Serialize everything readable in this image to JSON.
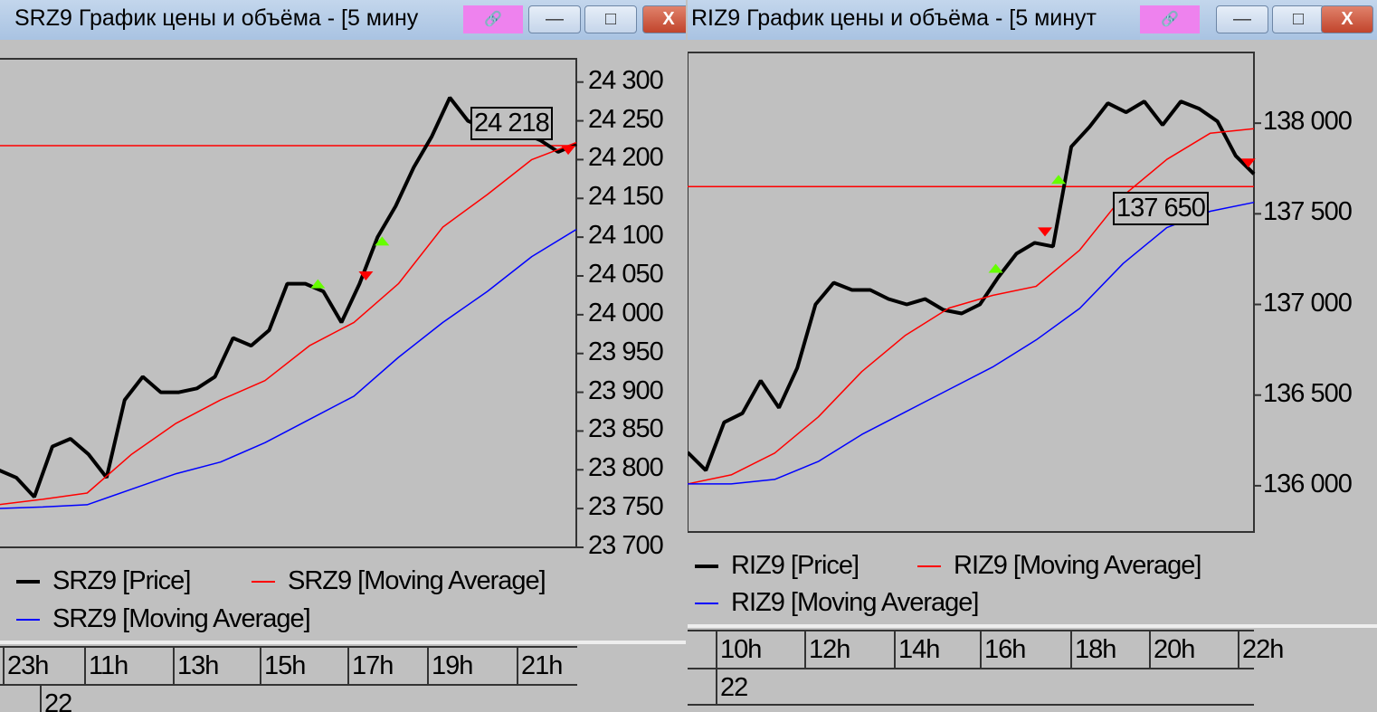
{
  "windows": [
    {
      "title": "SRZ9 График цены и объёма - [5 мину",
      "link_icon": "chain-link-icon",
      "link_color": "#ee82ee",
      "minimize": "—",
      "maximize": "□",
      "close": "X",
      "legend": [
        "SRZ9 [Price]",
        "SRZ9 [Moving Average]",
        "SRZ9 [Moving Average]"
      ],
      "time_ticks": [
        "23h",
        "11h",
        "13h",
        "15h",
        "17h",
        "19h",
        "21h"
      ],
      "date_label": "22",
      "last_price": "24 218"
    },
    {
      "title": "RIZ9 График цены и объёма - [5 минут",
      "link_icon": "chain-link-icon",
      "link_color": "#ee82ee",
      "minimize": "—",
      "maximize": "□",
      "close": "X",
      "legend": [
        "RIZ9 [Price]",
        "RIZ9 [Moving Average]",
        "RIZ9 [Moving Average]"
      ],
      "time_ticks": [
        "10h",
        "12h",
        "14h",
        "16h",
        "18h",
        "20h",
        "22h"
      ],
      "date_label": "22",
      "last_price": "137 650"
    }
  ],
  "chart_data": [
    {
      "type": "line",
      "title": "SRZ9",
      "ylim": [
        23700,
        24330
      ],
      "y_ticks": [
        "23 700",
        "23 750",
        "23 800",
        "23 850",
        "23 900",
        "23 950",
        "24 000",
        "24 050",
        "24 100",
        "24 150",
        "24 200",
        "24 250",
        "24 300"
      ],
      "y_tick_values": [
        23700,
        23750,
        23800,
        23850,
        23900,
        23950,
        24000,
        24050,
        24100,
        24150,
        24200,
        24250,
        24300
      ],
      "x_ticks": [
        "23h",
        "11h",
        "13h",
        "15h",
        "17h",
        "19h",
        "21h"
      ],
      "grid": false,
      "legend": "bottom",
      "series": [
        {
          "name": "SRZ9 [Price]",
          "color": "#000000",
          "values": [
            23800,
            23790,
            23765,
            23830,
            23840,
            23820,
            23790,
            23890,
            23920,
            23900,
            23900,
            23905,
            23920,
            23970,
            23960,
            23980,
            24040,
            24040,
            24030,
            23990,
            24040,
            24100,
            24140,
            24190,
            24230,
            24280,
            24250,
            24240,
            24240,
            24235,
            24225,
            24210,
            24220
          ]
        },
        {
          "name": "SRZ9 [Moving Average]",
          "color": "#ff0000",
          "values": [
            23755,
            23762,
            23770,
            23820,
            23860,
            23890,
            23915,
            23960,
            23990,
            24040,
            24113,
            24155,
            24200,
            24222
          ]
        },
        {
          "name": "SRZ9 [Moving Average]",
          "color": "#0000ff",
          "values": [
            23750,
            23752,
            23755,
            23775,
            23795,
            23810,
            23835,
            23865,
            23895,
            23945,
            23990,
            24030,
            24075,
            24110
          ]
        }
      ],
      "last_price": 24218,
      "signals": [
        {
          "type": "buy",
          "pos": 0.553,
          "value": 24040
        },
        {
          "type": "sell",
          "pos": 0.636,
          "value": 24050
        },
        {
          "type": "buy",
          "pos": 0.664,
          "value": 24095
        },
        {
          "type": "sell",
          "pos": 0.986,
          "value": 24212
        }
      ]
    },
    {
      "type": "line",
      "title": "RIZ9",
      "ylim": [
        135745,
        138390
      ],
      "y_ticks": [
        "136 000",
        "136 500",
        "137 000",
        "137 500",
        "138 000"
      ],
      "y_tick_values": [
        136000,
        136500,
        137000,
        137500,
        138000
      ],
      "x_ticks": [
        "10h",
        "12h",
        "14h",
        "16h",
        "18h",
        "20h",
        "22h"
      ],
      "grid": false,
      "legend": "bottom",
      "series": [
        {
          "name": "RIZ9 [Price]",
          "color": "#000000",
          "values": [
            136184,
            136085,
            136350,
            136400,
            136580,
            136430,
            136650,
            137000,
            137120,
            137080,
            137080,
            137030,
            137000,
            137030,
            136970,
            136950,
            137000,
            137150,
            137280,
            137340,
            137320,
            137870,
            137980,
            138110,
            138060,
            138120,
            137990,
            138120,
            138080,
            138010,
            137820,
            137720
          ]
        },
        {
          "name": "RIZ9 [Moving Average]",
          "color": "#ff0000",
          "values": [
            136010,
            136060,
            136180,
            136380,
            136630,
            136830,
            136980,
            137050,
            137100,
            137300,
            137600,
            137800,
            137945,
            137970
          ]
        },
        {
          "name": "RIZ9 [Moving Average]",
          "color": "#0000ff",
          "values": [
            136010,
            136010,
            136035,
            136134,
            136283,
            136407,
            136531,
            136655,
            136804,
            136978,
            137226,
            137424,
            137514,
            137563
          ]
        }
      ],
      "last_price": 137650,
      "signals": [
        {
          "type": "buy",
          "pos": 0.544,
          "value": 137200
        },
        {
          "type": "sell",
          "pos": 0.631,
          "value": 137400
        },
        {
          "type": "buy",
          "pos": 0.655,
          "value": 137690
        },
        {
          "type": "sell",
          "pos": 0.99,
          "value": 137780
        }
      ]
    }
  ]
}
